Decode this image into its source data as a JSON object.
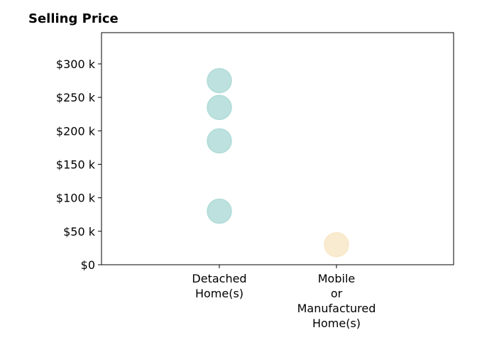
{
  "chart_data": {
    "type": "scatter",
    "title": "Selling Price",
    "xlabel": "",
    "ylabel": "",
    "categories": [
      "Detached\nHome(s)",
      "Mobile\nor\nManufactured\nHome(s)"
    ],
    "ylim": [
      0,
      345000
    ],
    "yticks": [
      0,
      50000,
      100000,
      150000,
      200000,
      250000,
      300000
    ],
    "ytick_labels": [
      "$0",
      "$50 k",
      "$100 k",
      "$150 k",
      "$200 k",
      "$250 k",
      "$300 k"
    ],
    "grid": false,
    "series": [
      {
        "category": "Detached\nHome(s)",
        "values": [
          275000,
          235000,
          185000,
          80000
        ],
        "color": "#b0dcd8"
      },
      {
        "category": "Mobile\nor\nManufactured\nHome(s)",
        "values": [
          30000
        ],
        "color": "#f8e8c8"
      }
    ]
  }
}
